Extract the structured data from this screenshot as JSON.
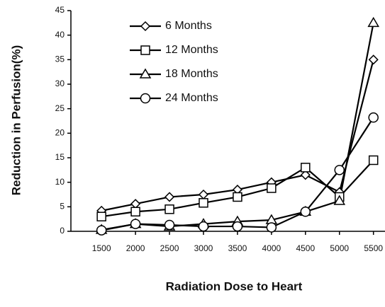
{
  "chart_data": {
    "type": "line",
    "x_label": "Radiation Dose to Heart",
    "y_label": "Reduction in Perfusion(%)",
    "x": [
      1500,
      2000,
      2500,
      3000,
      3500,
      4000,
      4500,
      5000,
      5500
    ],
    "xlim": [
      1050,
      5670
    ],
    "xticks": [
      1500,
      2000,
      2500,
      3000,
      3500,
      4000,
      4500,
      5000,
      5500
    ],
    "ylim": [
      0,
      45
    ],
    "yticks": [
      0,
      5,
      10,
      15,
      20,
      25,
      30,
      35,
      40,
      45
    ],
    "grid": false,
    "legend": "upper-left",
    "series": [
      {
        "name": "6 Months",
        "color": "#000000",
        "marker": "diamond",
        "values": [
          4.2,
          5.6,
          7.0,
          7.5,
          8.5,
          10,
          11.5,
          8,
          35
        ]
      },
      {
        "name": "12 Months",
        "color": "#000000",
        "marker": "square",
        "values": [
          3,
          4,
          4.5,
          5.8,
          7,
          8.8,
          13,
          7,
          14.5
        ]
      },
      {
        "name": "18 Months",
        "color": "#000000",
        "marker": "triangle",
        "values": [
          0.3,
          1.5,
          1,
          1.5,
          2,
          2.3,
          4,
          6.2,
          42.5
        ]
      },
      {
        "name": "24 Months",
        "color": "#000000",
        "marker": "circle",
        "values": [
          0.2,
          1.5,
          1.3,
          1,
          1,
          0.8,
          4,
          12.5,
          23.2
        ]
      }
    ]
  }
}
